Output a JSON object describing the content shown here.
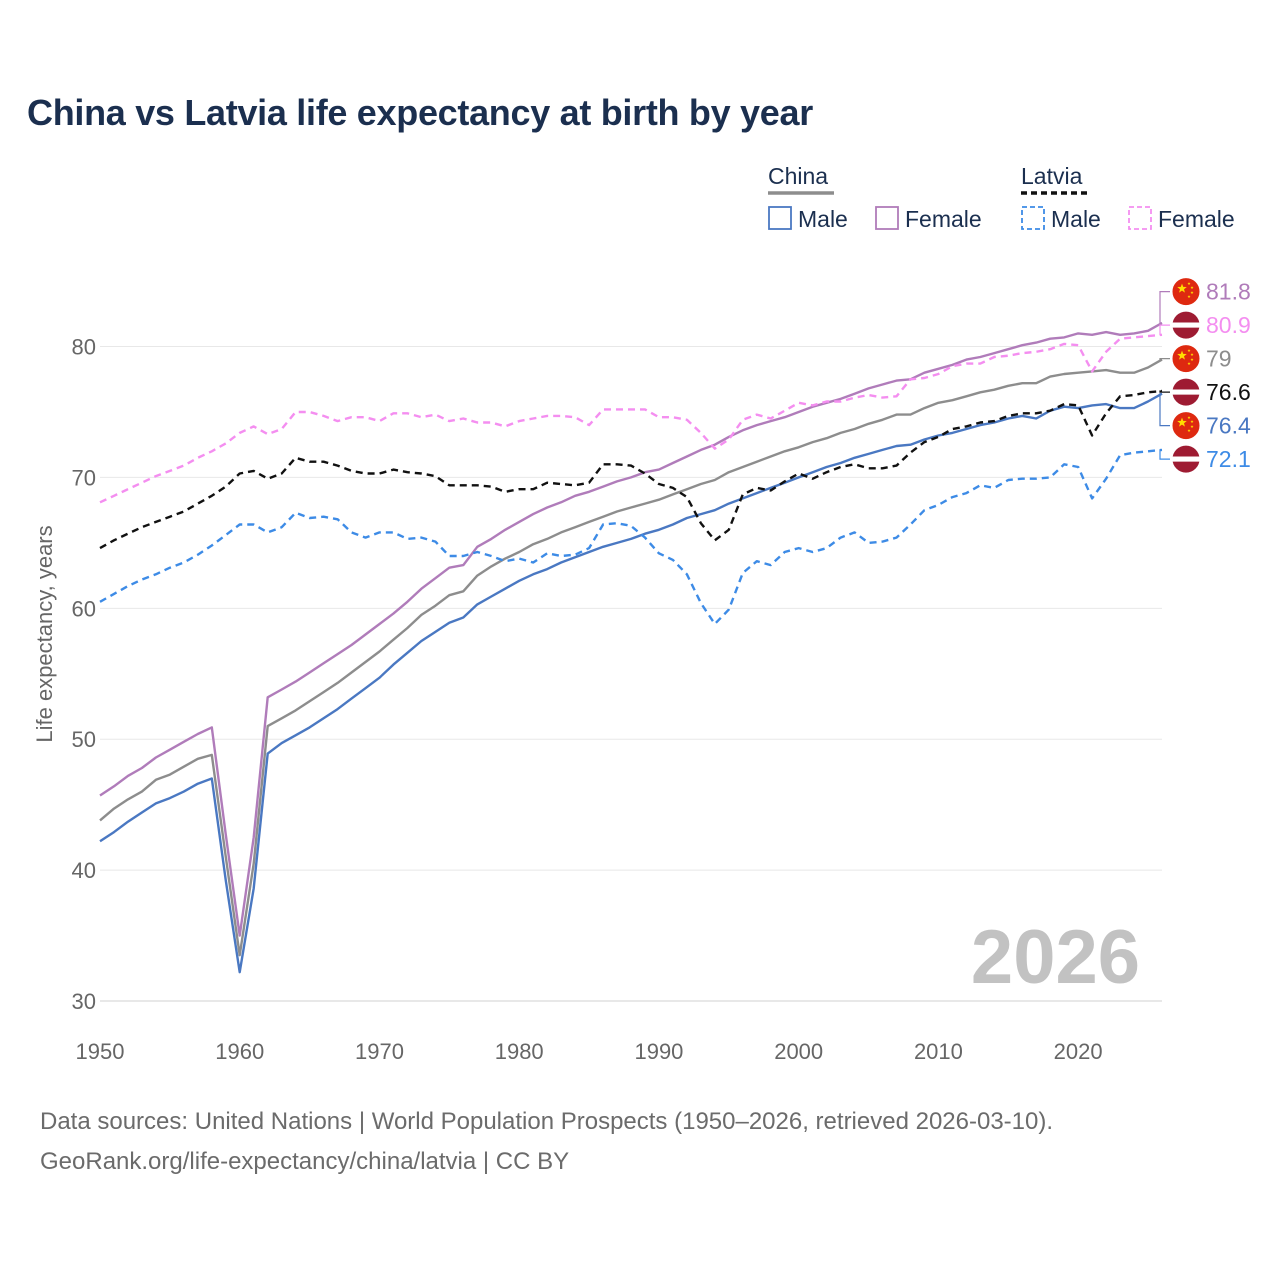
{
  "chart_data": {
    "type": "line",
    "title": "China vs Latvia life expectancy at birth by year",
    "xlabel": "",
    "ylabel": "Life expectancy, years",
    "xlim": [
      1950,
      2026
    ],
    "ylim": [
      30,
      86
    ],
    "x_ticks": [
      1950,
      1960,
      1970,
      1980,
      1990,
      2000,
      2010,
      2020
    ],
    "y_ticks": [
      30,
      40,
      50,
      60,
      70,
      80
    ],
    "grid": true,
    "watermark_year": "2026",
    "legend": {
      "placement": "top-right",
      "groups": [
        {
          "country": "China",
          "total_color": "#8d8d8d",
          "total_dashed": false,
          "items": [
            {
              "label": "Male",
              "color": "#4a78c2",
              "dashed": false
            },
            {
              "label": "Female",
              "color": "#b07cba",
              "dashed": false
            }
          ]
        },
        {
          "country": "Latvia",
          "total_color": "#111111",
          "total_dashed": true,
          "items": [
            {
              "label": "Male",
              "color": "#3d8be6",
              "dashed": true
            },
            {
              "label": "Female",
              "color": "#f48ef0",
              "dashed": true
            }
          ]
        }
      ]
    },
    "x": [
      1950,
      1951,
      1952,
      1953,
      1954,
      1955,
      1956,
      1957,
      1958,
      1959,
      1960,
      1961,
      1962,
      1963,
      1964,
      1965,
      1966,
      1967,
      1968,
      1969,
      1970,
      1971,
      1972,
      1973,
      1974,
      1975,
      1976,
      1977,
      1978,
      1979,
      1980,
      1981,
      1982,
      1983,
      1984,
      1985,
      1986,
      1987,
      1988,
      1989,
      1990,
      1991,
      1992,
      1993,
      1994,
      1995,
      1996,
      1997,
      1998,
      1999,
      2000,
      2001,
      2002,
      2003,
      2004,
      2005,
      2006,
      2007,
      2008,
      2009,
      2010,
      2011,
      2012,
      2013,
      2014,
      2015,
      2016,
      2017,
      2018,
      2019,
      2020,
      2021,
      2022,
      2023,
      2024,
      2025,
      2026
    ],
    "series": [
      {
        "name": "China total",
        "country": "China",
        "sex": "Total",
        "color": "#8d8d8d",
        "dashed": false,
        "end_label": "79",
        "flag": "china",
        "values": [
          43.8,
          44.7,
          45.4,
          46.0,
          46.9,
          47.3,
          47.9,
          48.5,
          48.8,
          41.0,
          33.5,
          40.5,
          51.0,
          51.6,
          52.2,
          52.9,
          53.6,
          54.3,
          55.1,
          55.9,
          56.7,
          57.6,
          58.5,
          59.5,
          60.2,
          61.0,
          61.3,
          62.5,
          63.2,
          63.8,
          64.3,
          64.9,
          65.3,
          65.8,
          66.2,
          66.6,
          67.0,
          67.4,
          67.7,
          68.0,
          68.3,
          68.7,
          69.1,
          69.5,
          69.8,
          70.4,
          70.8,
          71.2,
          71.6,
          72.0,
          72.3,
          72.7,
          73.0,
          73.4,
          73.7,
          74.1,
          74.4,
          74.8,
          74.8,
          75.3,
          75.7,
          75.9,
          76.2,
          76.5,
          76.7,
          77.0,
          77.2,
          77.2,
          77.7,
          77.9,
          78.0,
          78.1,
          78.2,
          78.0,
          78.0,
          78.4,
          79.0
        ]
      },
      {
        "name": "China female",
        "country": "China",
        "sex": "Female",
        "color": "#b07cba",
        "dashed": false,
        "end_label": "81.8",
        "flag": "china",
        "values": [
          45.7,
          46.4,
          47.2,
          47.8,
          48.6,
          49.2,
          49.8,
          50.4,
          50.9,
          42.7,
          35.0,
          42.5,
          53.2,
          53.8,
          54.4,
          55.1,
          55.8,
          56.5,
          57.2,
          58.0,
          58.8,
          59.6,
          60.5,
          61.5,
          62.3,
          63.1,
          63.3,
          64.7,
          65.3,
          66.0,
          66.6,
          67.2,
          67.7,
          68.1,
          68.6,
          68.9,
          69.3,
          69.7,
          70.0,
          70.4,
          70.6,
          71.1,
          71.6,
          72.1,
          72.5,
          73.1,
          73.6,
          74.0,
          74.3,
          74.6,
          75.0,
          75.4,
          75.7,
          76.0,
          76.4,
          76.8,
          77.1,
          77.4,
          77.5,
          78.0,
          78.3,
          78.6,
          79.0,
          79.2,
          79.5,
          79.8,
          80.1,
          80.3,
          80.6,
          80.7,
          81.0,
          80.9,
          81.1,
          80.9,
          81.0,
          81.2,
          81.8
        ]
      },
      {
        "name": "China male",
        "country": "China",
        "sex": "Male",
        "color": "#4a78c2",
        "dashed": false,
        "end_label": "76.4",
        "flag": "china",
        "values": [
          42.2,
          42.9,
          43.7,
          44.4,
          45.1,
          45.5,
          46.0,
          46.6,
          47.0,
          39.2,
          32.2,
          38.6,
          48.9,
          49.7,
          50.3,
          50.9,
          51.6,
          52.3,
          53.1,
          53.9,
          54.7,
          55.7,
          56.6,
          57.5,
          58.2,
          58.9,
          59.3,
          60.3,
          60.9,
          61.5,
          62.1,
          62.6,
          63.0,
          63.5,
          63.9,
          64.3,
          64.7,
          65.0,
          65.3,
          65.7,
          66.0,
          66.4,
          66.9,
          67.2,
          67.5,
          68.0,
          68.4,
          68.8,
          69.2,
          69.6,
          70.0,
          70.4,
          70.8,
          71.1,
          71.5,
          71.8,
          72.1,
          72.4,
          72.5,
          72.9,
          73.2,
          73.4,
          73.7,
          74.0,
          74.2,
          74.5,
          74.7,
          74.5,
          75.1,
          75.4,
          75.3,
          75.5,
          75.6,
          75.3,
          75.3,
          75.8,
          76.4
        ]
      },
      {
        "name": "Latvia total",
        "country": "Latvia",
        "sex": "Total",
        "color": "#111111",
        "dashed": true,
        "end_label": "76.6",
        "flag": "latvia",
        "values": [
          64.6,
          65.2,
          65.7,
          66.2,
          66.6,
          67.0,
          67.4,
          68.0,
          68.6,
          69.3,
          70.3,
          70.5,
          69.9,
          70.3,
          71.5,
          71.2,
          71.2,
          70.9,
          70.5,
          70.3,
          70.3,
          70.6,
          70.4,
          70.3,
          70.1,
          69.4,
          69.4,
          69.4,
          69.3,
          68.9,
          69.1,
          69.1,
          69.6,
          69.5,
          69.4,
          69.6,
          71.0,
          71.0,
          70.9,
          70.3,
          69.5,
          69.2,
          68.5,
          66.5,
          65.2,
          66.0,
          68.7,
          69.2,
          69.0,
          69.7,
          70.3,
          69.9,
          70.4,
          70.8,
          71.0,
          70.7,
          70.7,
          70.9,
          71.9,
          72.7,
          73.1,
          73.7,
          73.9,
          74.2,
          74.3,
          74.7,
          74.9,
          74.9,
          75.1,
          75.6,
          75.5,
          73.2,
          74.9,
          76.2,
          76.3,
          76.5,
          76.6
        ]
      },
      {
        "name": "Latvia female",
        "country": "Latvia",
        "sex": "Female",
        "color": "#f48ef0",
        "dashed": true,
        "end_label": "80.9",
        "flag": "latvia",
        "values": [
          68.1,
          68.6,
          69.1,
          69.6,
          70.1,
          70.5,
          70.9,
          71.5,
          72.0,
          72.6,
          73.4,
          73.9,
          73.3,
          73.7,
          75.0,
          75.0,
          74.7,
          74.3,
          74.6,
          74.6,
          74.3,
          74.9,
          74.9,
          74.6,
          74.8,
          74.3,
          74.5,
          74.2,
          74.2,
          73.9,
          74.3,
          74.5,
          74.7,
          74.7,
          74.6,
          74.0,
          75.2,
          75.2,
          75.2,
          75.2,
          74.6,
          74.6,
          74.4,
          73.4,
          72.2,
          72.9,
          74.4,
          74.8,
          74.5,
          75.1,
          75.7,
          75.5,
          75.8,
          75.8,
          76.1,
          76.3,
          76.1,
          76.2,
          77.5,
          77.6,
          77.9,
          78.5,
          78.7,
          78.7,
          79.2,
          79.3,
          79.5,
          79.6,
          79.8,
          80.2,
          80.1,
          78.1,
          79.6,
          80.6,
          80.7,
          80.8,
          80.9
        ]
      },
      {
        "name": "Latvia male",
        "country": "Latvia",
        "sex": "Male",
        "color": "#3d8be6",
        "dashed": true,
        "end_label": "72.1",
        "flag": "latvia",
        "values": [
          60.5,
          61.1,
          61.7,
          62.2,
          62.6,
          63.1,
          63.5,
          64.1,
          64.8,
          65.6,
          66.4,
          66.4,
          65.8,
          66.2,
          67.3,
          66.9,
          67.0,
          66.8,
          65.8,
          65.4,
          65.8,
          65.8,
          65.3,
          65.4,
          65.1,
          64.0,
          64.0,
          64.3,
          64.0,
          63.6,
          63.8,
          63.5,
          64.2,
          64.0,
          64.1,
          64.6,
          66.4,
          66.5,
          66.3,
          65.4,
          64.2,
          63.7,
          62.6,
          60.4,
          58.8,
          59.9,
          62.7,
          63.6,
          63.3,
          64.3,
          64.6,
          64.3,
          64.6,
          65.4,
          65.8,
          65.0,
          65.1,
          65.4,
          66.4,
          67.5,
          67.9,
          68.5,
          68.8,
          69.4,
          69.2,
          69.8,
          69.9,
          69.9,
          70.0,
          71.0,
          70.8,
          68.4,
          69.9,
          71.7,
          71.9,
          72.0,
          72.1
        ]
      }
    ]
  },
  "source": {
    "line1": "Data sources: United Nations | World Population Prospects (1950–2026, retrieved 2026-03-10).",
    "line2": "GeoRank.org/life-expectancy/china/latvia | CC BY"
  }
}
